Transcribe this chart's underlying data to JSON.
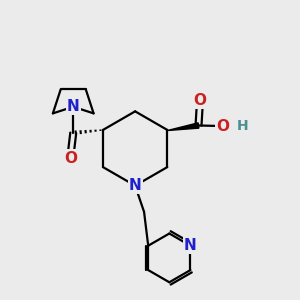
{
  "bg_color": "#ebebeb",
  "atom_colors": {
    "N": "#2020cc",
    "O": "#cc2020",
    "H": "#4a9090"
  },
  "bond_color": "#000000",
  "bond_width": 1.6,
  "font_size": 11
}
